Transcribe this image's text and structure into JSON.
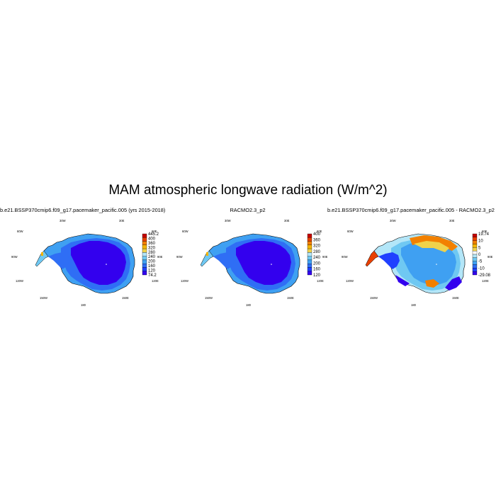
{
  "title": "MAM atmospheric longwave radiation (W/m^2)",
  "panels": [
    {
      "title": "b.e21.BSSP370cmip6.f09_g17.pacemaker_pacific.005 (yrs 2015-2018)",
      "colors": [
        "#3300ee",
        "#2040ff",
        "#2f6ef5",
        "#3fa0f2",
        "#6fc8f2",
        "#b3e6f8",
        "#f0d24a",
        "#f5b400",
        "#f28000",
        "#e84000",
        "#c40000"
      ],
      "labels": [
        "445.2",
        "400",
        "360",
        "320",
        "280",
        "240",
        "200",
        "160",
        "120",
        "74.2"
      ],
      "lon_labels": [
        "30W",
        "30E",
        "60W",
        "60E",
        "90W",
        "90E",
        "120W",
        "120E",
        "150W",
        "150E",
        "180"
      ]
    },
    {
      "title": "RACMO2.3_p2",
      "colors": [
        "#3300ee",
        "#2040ff",
        "#2f6ef5",
        "#3fa0f2",
        "#6fc8f2",
        "#b3e6f8",
        "#f0d24a",
        "#f5b400",
        "#f28000",
        "#e84000",
        "#c40000"
      ],
      "labels": [
        "400",
        "360",
        "320",
        "280",
        "240",
        "200",
        "160",
        "120"
      ],
      "lon_labels": [
        "30W",
        "30E",
        "60W",
        "60E",
        "90W",
        "90E",
        "120W",
        "120E",
        "150W",
        "150E",
        "180"
      ]
    },
    {
      "title": "b.e21.BSSP370cmip6.f09_g17.pacemaker_pacific.005 - RACMO2.3_p2",
      "colors": [
        "#3300ee",
        "#2040ff",
        "#2f6ef5",
        "#3fa0f2",
        "#6fc8f2",
        "#b3e6f8",
        "#ffffff",
        "#f0d24a",
        "#f5b400",
        "#f28000",
        "#e84000",
        "#c40000"
      ],
      "labels": [
        "19.74",
        "10",
        "5",
        "0",
        "-5",
        "-10",
        "-29.08"
      ],
      "lon_labels": [
        "30W",
        "30E",
        "60W",
        "60E",
        "90W",
        "90E",
        "120W",
        "120E",
        "150W",
        "150E",
        "180"
      ]
    }
  ]
}
